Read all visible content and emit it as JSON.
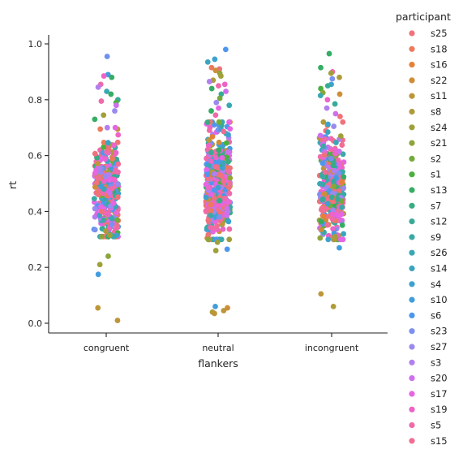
{
  "chart_data": {
    "type": "scatter",
    "subtype": "strip",
    "xlabel": "flankers",
    "ylabel": "rt",
    "categories": [
      "congruent",
      "neutral",
      "incongruent"
    ],
    "ylim": [
      -0.035,
      1.03
    ],
    "yticks": [
      0.0,
      0.2,
      0.4,
      0.6,
      0.8,
      1.0
    ],
    "ytick_labels": [
      "0.0",
      "0.2",
      "0.4",
      "0.6",
      "0.8",
      "1.0"
    ],
    "grid": false,
    "legend": {
      "title": "participant",
      "placement": "right",
      "entries": [
        {
          "name": "s25",
          "color": "#f0727a"
        },
        {
          "name": "s18",
          "color": "#ec7a5b"
        },
        {
          "name": "s16",
          "color": "#e58136"
        },
        {
          "name": "s22",
          "color": "#cf8d37"
        },
        {
          "name": "s11",
          "color": "#bd963a"
        },
        {
          "name": "s8",
          "color": "#ae9b39"
        },
        {
          "name": "s24",
          "color": "#a0a03a"
        },
        {
          "name": "s21",
          "color": "#8ea53a"
        },
        {
          "name": "s2",
          "color": "#74ab3a"
        },
        {
          "name": "s1",
          "color": "#4bb13e"
        },
        {
          "name": "s13",
          "color": "#35ad64"
        },
        {
          "name": "s7",
          "color": "#37ad82"
        },
        {
          "name": "s12",
          "color": "#38ab97"
        },
        {
          "name": "s9",
          "color": "#39aaa6"
        },
        {
          "name": "s26",
          "color": "#3aa8b3"
        },
        {
          "name": "s14",
          "color": "#3ba5c0"
        },
        {
          "name": "s4",
          "color": "#3da2cd"
        },
        {
          "name": "s10",
          "color": "#429ddc"
        },
        {
          "name": "s6",
          "color": "#4e97ee"
        },
        {
          "name": "s23",
          "color": "#7c90ee"
        },
        {
          "name": "s27",
          "color": "#9a8af0"
        },
        {
          "name": "s3",
          "color": "#b27ff0"
        },
        {
          "name": "s20",
          "color": "#ce6fee"
        },
        {
          "name": "s17",
          "color": "#e565e4"
        },
        {
          "name": "s19",
          "color": "#ee63c8"
        },
        {
          "name": "s5",
          "color": "#ef6aab"
        },
        {
          "name": "s15",
          "color": "#f06e92"
        }
      ]
    },
    "groups": [
      {
        "category": "congruent",
        "bulk_range": [
          0.31,
          0.7
        ],
        "bulk_center": 0.48,
        "bulk_points": 320,
        "outliers": [
          {
            "y": 0.955,
            "color": "#6f8ff0"
          },
          {
            "y": 0.89,
            "color": "#429ddc"
          },
          {
            "y": 0.885,
            "color": "#ee63c8"
          },
          {
            "y": 0.88,
            "color": "#35ad64"
          },
          {
            "y": 0.855,
            "color": "#ef6aab"
          },
          {
            "y": 0.845,
            "color": "#b27ff0"
          },
          {
            "y": 0.83,
            "color": "#3aa8b3"
          },
          {
            "y": 0.82,
            "color": "#35ad64"
          },
          {
            "y": 0.8,
            "color": "#38ab97"
          },
          {
            "y": 0.795,
            "color": "#ef6aab"
          },
          {
            "y": 0.79,
            "color": "#4bb13e"
          },
          {
            "y": 0.78,
            "color": "#ce6fee"
          },
          {
            "y": 0.76,
            "color": "#9a8af0"
          },
          {
            "y": 0.745,
            "color": "#a0a03a"
          },
          {
            "y": 0.73,
            "color": "#35ad64"
          },
          {
            "y": 0.695,
            "color": "#ec7a5b"
          },
          {
            "y": 0.33,
            "color": "#ae9b39"
          },
          {
            "y": 0.315,
            "color": "#a0a03a"
          },
          {
            "y": 0.24,
            "color": "#8ea53a"
          },
          {
            "y": 0.21,
            "color": "#a0a03a"
          },
          {
            "y": 0.175,
            "color": "#429ddc"
          },
          {
            "y": 0.055,
            "color": "#bd963a"
          },
          {
            "y": 0.01,
            "color": "#bd963a"
          }
        ]
      },
      {
        "category": "neutral",
        "bulk_range": [
          0.3,
          0.72
        ],
        "bulk_center": 0.5,
        "bulk_points": 480,
        "outliers": [
          {
            "y": 0.98,
            "color": "#4e97ee"
          },
          {
            "y": 0.945,
            "color": "#3da2cd"
          },
          {
            "y": 0.935,
            "color": "#3ba5c0"
          },
          {
            "y": 0.915,
            "color": "#ec7a5b"
          },
          {
            "y": 0.91,
            "color": "#f0727a"
          },
          {
            "y": 0.905,
            "color": "#cf8d37"
          },
          {
            "y": 0.895,
            "color": "#8ea53a"
          },
          {
            "y": 0.885,
            "color": "#a0a03a"
          },
          {
            "y": 0.87,
            "color": "#ae9b39"
          },
          {
            "y": 0.865,
            "color": "#b27ff0"
          },
          {
            "y": 0.855,
            "color": "#ee63c8"
          },
          {
            "y": 0.85,
            "color": "#ef6aab"
          },
          {
            "y": 0.84,
            "color": "#35ad64"
          },
          {
            "y": 0.83,
            "color": "#ce6fee"
          },
          {
            "y": 0.82,
            "color": "#38ab97"
          },
          {
            "y": 0.805,
            "color": "#74ab3a"
          },
          {
            "y": 0.79,
            "color": "#9a8af0"
          },
          {
            "y": 0.78,
            "color": "#3aa8b3"
          },
          {
            "y": 0.77,
            "color": "#e565e4"
          },
          {
            "y": 0.76,
            "color": "#35ad64"
          },
          {
            "y": 0.745,
            "color": "#ef6aab"
          },
          {
            "y": 0.3,
            "color": "#8ea53a"
          },
          {
            "y": 0.29,
            "color": "#a0a03a"
          },
          {
            "y": 0.265,
            "color": "#4e97ee"
          },
          {
            "y": 0.26,
            "color": "#a0a03a"
          },
          {
            "y": 0.06,
            "color": "#429ddc"
          },
          {
            "y": 0.055,
            "color": "#cf8d37"
          },
          {
            "y": 0.045,
            "color": "#bd963a"
          },
          {
            "y": 0.04,
            "color": "#ae9b39"
          },
          {
            "y": 0.035,
            "color": "#bd963a"
          }
        ]
      },
      {
        "category": "incongruent",
        "bulk_range": [
          0.3,
          0.72
        ],
        "bulk_center": 0.5,
        "bulk_points": 360,
        "outliers": [
          {
            "y": 0.965,
            "color": "#35ad64"
          },
          {
            "y": 0.915,
            "color": "#35ad64"
          },
          {
            "y": 0.9,
            "color": "#ef6aab"
          },
          {
            "y": 0.895,
            "color": "#a0a03a"
          },
          {
            "y": 0.88,
            "color": "#ae9b39"
          },
          {
            "y": 0.875,
            "color": "#7c90ee"
          },
          {
            "y": 0.855,
            "color": "#3da2cd"
          },
          {
            "y": 0.85,
            "color": "#38ab97"
          },
          {
            "y": 0.84,
            "color": "#4bb13e"
          },
          {
            "y": 0.825,
            "color": "#8ea53a"
          },
          {
            "y": 0.82,
            "color": "#cf8d37"
          },
          {
            "y": 0.815,
            "color": "#3aa8b3"
          },
          {
            "y": 0.8,
            "color": "#ee63c8"
          },
          {
            "y": 0.785,
            "color": "#38ab97"
          },
          {
            "y": 0.77,
            "color": "#b27ff0"
          },
          {
            "y": 0.75,
            "color": "#ce6fee"
          },
          {
            "y": 0.74,
            "color": "#f0727a"
          },
          {
            "y": 0.31,
            "color": "#a0a03a"
          },
          {
            "y": 0.305,
            "color": "#8ea53a"
          },
          {
            "y": 0.3,
            "color": "#ae9b39"
          },
          {
            "y": 0.27,
            "color": "#429ddc"
          },
          {
            "y": 0.105,
            "color": "#bd963a"
          },
          {
            "y": 0.06,
            "color": "#ae9b39"
          }
        ]
      }
    ]
  }
}
